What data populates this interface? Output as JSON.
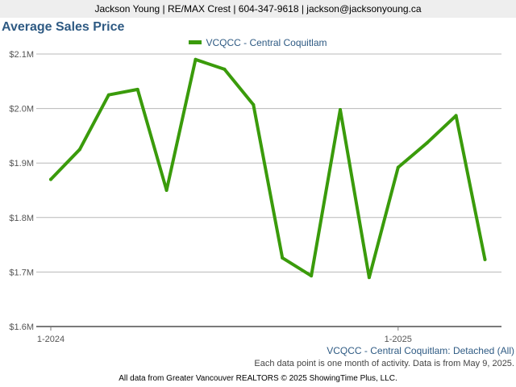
{
  "header": {
    "agent_info": "Jackson Young | RE/MAX Crest | 604-347-9618 | jackson@jacksonyoung.ca"
  },
  "chart_data": {
    "type": "line",
    "title": "Average Sales Price",
    "subtitle": "VCQCC - Central Coquitlam: Detached (All)",
    "note": "Each data point is one month of activity. Data is from May 9, 2025.",
    "footer": "All data from Greater Vancouver REALTORS © 2025 ShowingTime Plus, LLC.",
    "x_tick_labels": [
      "1-2024",
      "1-2025"
    ],
    "y_tick_labels": [
      "$1.6M",
      "$1.7M",
      "$1.8M",
      "$1.9M",
      "$2.0M",
      "$2.1M"
    ],
    "ylim": [
      1600000,
      2100000
    ],
    "grid": true,
    "legend_position": "top-center",
    "series": [
      {
        "name": "VCQCC - Central Coquitlam",
        "color": "#3a9b0b",
        "x": [
          "2024-01",
          "2024-02",
          "2024-03",
          "2024-04",
          "2024-05",
          "2024-06",
          "2024-07",
          "2024-08",
          "2024-09",
          "2024-10",
          "2024-11",
          "2024-12",
          "2025-01",
          "2025-02",
          "2025-03",
          "2025-04"
        ],
        "values": [
          1870000,
          1925000,
          2025000,
          2035000,
          1850000,
          2090000,
          2072000,
          2007000,
          1726000,
          1693000,
          1998000,
          1690000,
          1892000,
          1937000,
          1987000,
          1723000
        ]
      }
    ]
  }
}
